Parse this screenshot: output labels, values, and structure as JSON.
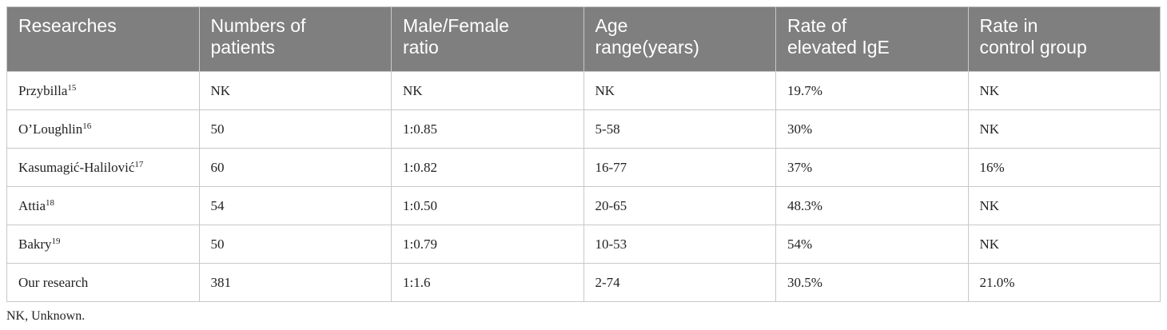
{
  "table": {
    "header": [
      "Researches",
      "Numbers of patients",
      "Male/Female ratio",
      "Age range(years)",
      "Rate of elevated IgE",
      "Rate in control group"
    ],
    "rows": [
      [
        {
          "name": "Przybilla",
          "ref": "15"
        },
        "NK",
        "NK",
        "NK",
        "19.7%",
        "NK"
      ],
      [
        {
          "name": "O’Loughlin",
          "ref": "16"
        },
        "50",
        "1:0.85",
        "5-58",
        "30%",
        "NK"
      ],
      [
        {
          "name": "Kasumagić-Halilović",
          "ref": "17"
        },
        "60",
        "1:0.82",
        "16-77",
        "37%",
        "16%"
      ],
      [
        {
          "name": "Attia",
          "ref": "18"
        },
        "54",
        "1:0.50",
        "20-65",
        "48.3%",
        "NK"
      ],
      [
        {
          "name": "Bakry",
          "ref": "19"
        },
        "50",
        "1:0.79",
        "10-53",
        "54%",
        "NK"
      ],
      [
        {
          "name": "Our research"
        },
        "381",
        "1:1.6",
        "2-74",
        "30.5%",
        "21.0%"
      ]
    ]
  },
  "footnote": "NK, Unknown."
}
